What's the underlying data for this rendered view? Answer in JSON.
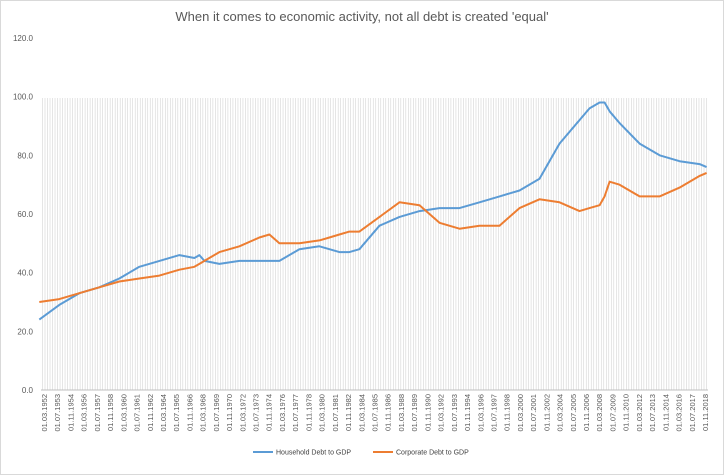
{
  "chart_data": {
    "type": "line",
    "title": "When it comes to economic activity, not all debt is created 'equal'",
    "xlabel": "",
    "ylabel": "",
    "ylim": [
      0,
      120
    ],
    "yticks": [
      "0.0",
      "20.0",
      "40.0",
      "60.0",
      "80.0",
      "100.0",
      "120.0"
    ],
    "grid": false,
    "legend_position": "bottom",
    "x_tick_labels": [
      "01.03.1952",
      "01.07.1953",
      "01.11.1954",
      "01.03.1956",
      "01.07.1957",
      "01.11.1958",
      "01.03.1960",
      "01.07.1961",
      "01.11.1962",
      "01.03.1964",
      "01.07.1965",
      "01.11.1966",
      "01.03.1968",
      "01.07.1969",
      "01.11.1970",
      "01.03.1972",
      "01.07.1973",
      "01.11.1974",
      "01.03.1976",
      "01.07.1977",
      "01.11.1978",
      "01.03.1980",
      "01.07.1981",
      "01.11.1982",
      "01.03.1984",
      "01.07.1985",
      "01.11.1986",
      "01.03.1988",
      "01.07.1989",
      "01.11.1990",
      "01.03.1992",
      "01.07.1993",
      "01.11.1994",
      "01.03.1996",
      "01.07.1997",
      "01.11.1998",
      "01.03.2000",
      "01.07.2001",
      "01.11.2002",
      "01.03.2004",
      "01.07.2005",
      "01.11.2006",
      "01.03.2008",
      "01.07.2009",
      "01.11.2010",
      "01.03.2012",
      "01.07.2013",
      "01.11.2014",
      "01.03.2016",
      "01.07.2017",
      "01.11.2018"
    ],
    "x": [
      1952,
      1954,
      1956,
      1958,
      1960,
      1962,
      1964,
      1966,
      1967.5,
      1968,
      1968.5,
      1970,
      1972,
      1974,
      1975,
      1976,
      1978,
      1980,
      1981,
      1982,
      1983,
      1984,
      1986,
      1988,
      1990,
      1992,
      1994,
      1996,
      1998,
      2000,
      2002,
      2004,
      2006,
      2007,
      2008,
      2008.5,
      2009,
      2010,
      2012,
      2014,
      2016,
      2018,
      2018.7
    ],
    "series": [
      {
        "name": "Household Debt to GDP",
        "color": "#5b9bd5",
        "values": [
          24,
          29,
          33,
          35,
          38,
          42,
          44,
          46,
          45,
          46,
          44,
          43,
          44,
          44,
          44,
          44,
          48,
          49,
          48,
          47,
          47,
          48,
          56,
          59,
          61,
          62,
          62,
          64,
          66,
          68,
          72,
          84,
          92,
          96,
          98,
          98,
          95,
          91,
          84,
          80,
          78,
          77,
          76
        ]
      },
      {
        "name": "Corporate Debt to GDP",
        "color": "#ed7d31",
        "values": [
          30,
          31,
          33,
          35,
          37,
          38,
          39,
          41,
          42,
          43,
          44,
          47,
          49,
          52,
          53,
          50,
          50,
          51,
          52,
          53,
          54,
          54,
          59,
          64,
          63,
          57,
          55,
          56,
          56,
          62,
          65,
          64,
          61,
          62,
          63,
          66,
          71,
          70,
          66,
          66,
          69,
          73,
          74
        ]
      }
    ]
  }
}
